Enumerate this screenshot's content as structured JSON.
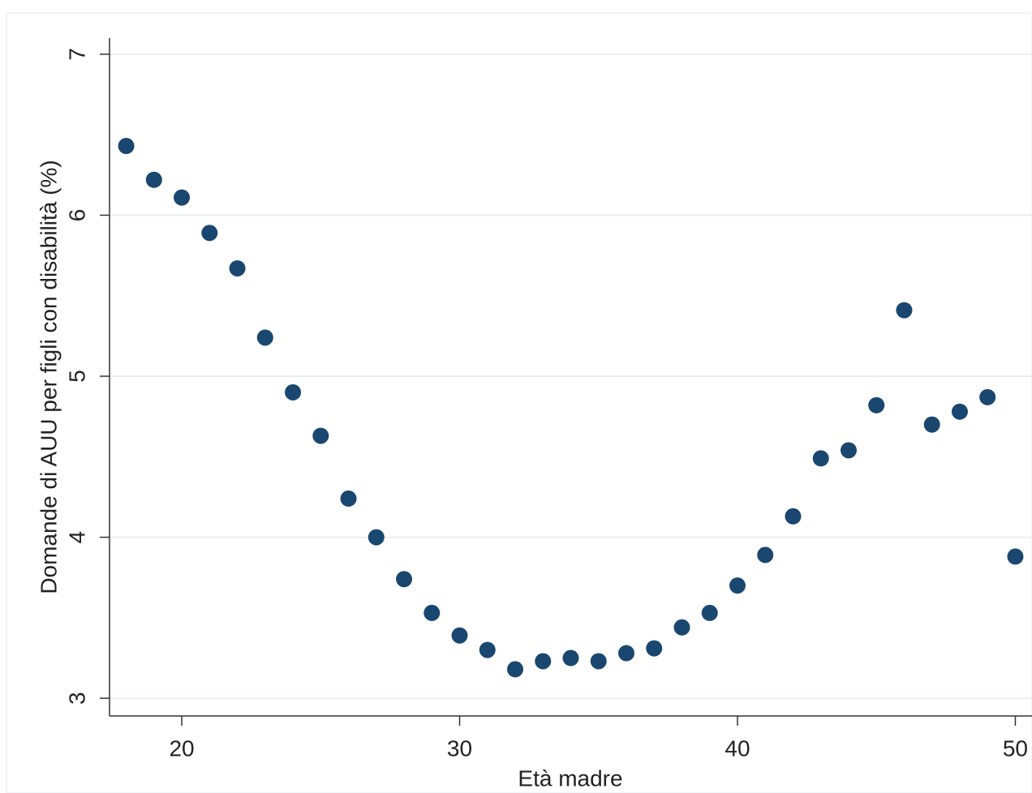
{
  "chart_data": {
    "type": "scatter",
    "x_label": "Età madre",
    "y_label": "Domande di AUU per figli con disabilità (%)",
    "x": [
      18,
      19,
      20,
      21,
      22,
      23,
      24,
      25,
      26,
      27,
      28,
      29,
      30,
      31,
      32,
      33,
      34,
      35,
      36,
      37,
      38,
      39,
      40,
      41,
      42,
      43,
      44,
      45,
      46,
      47,
      48,
      49,
      50
    ],
    "series": [
      {
        "color": "#1a476f",
        "values": [
          6.43,
          6.22,
          6.11,
          5.89,
          5.67,
          5.24,
          4.9,
          4.63,
          4.24,
          4.0,
          3.74,
          3.53,
          3.39,
          3.3,
          3.18,
          3.23,
          3.25,
          3.23,
          3.28,
          3.31,
          3.44,
          3.53,
          3.7,
          3.89,
          4.13,
          4.49,
          4.54,
          4.82,
          5.41,
          4.7,
          4.78,
          4.87,
          3.88
        ]
      }
    ],
    "xlim": [
      17.4,
      50.6
    ],
    "xticks": [
      20,
      30,
      40,
      50
    ],
    "ylim": [
      2.89,
      7.1
    ],
    "yticks": [
      3,
      4,
      5,
      6,
      7
    ],
    "grid": true
  }
}
